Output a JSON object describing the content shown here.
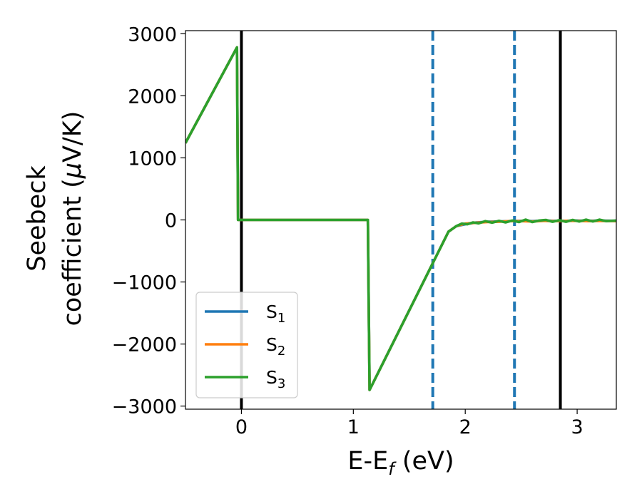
{
  "chart_data": {
    "type": "line",
    "xlabel": {
      "main": "E-E",
      "sub": "f",
      "suffix": " (eV)"
    },
    "ylabel": {
      "line1": "Seebeck",
      "line2_prefix": "coefficient  (",
      "line2_mu": "μ",
      "line2_suffix": "V/K)"
    },
    "xlim": [
      -0.5,
      3.35
    ],
    "ylim": [
      -3050,
      3050
    ],
    "xticks": [
      0,
      1,
      2,
      3
    ],
    "xtick_labels": [
      "0",
      "1",
      "2",
      "3"
    ],
    "yticks": [
      -3000,
      -2000,
      -1000,
      0,
      1000,
      2000,
      3000
    ],
    "ytick_labels": [
      "−3000",
      "−2000",
      "−1000",
      "0",
      "1000",
      "2000",
      "3000"
    ],
    "grid": false,
    "legend_position": "lower-left",
    "series": [
      {
        "name": "S",
        "subscript": "1",
        "color": "#1f77b4",
        "points": [
          [
            -0.5,
            1240
          ],
          [
            -0.04,
            2780
          ],
          [
            -0.03,
            0
          ],
          [
            1.13,
            0
          ],
          [
            1.145,
            -2740
          ],
          [
            1.85,
            -190
          ],
          [
            1.92,
            -100
          ],
          [
            2.0,
            -70
          ],
          [
            2.1,
            -40
          ],
          [
            2.2,
            -30
          ],
          [
            2.3,
            -25
          ],
          [
            2.4,
            -20
          ],
          [
            2.5,
            -15
          ],
          [
            2.6,
            -20
          ],
          [
            2.7,
            -10
          ],
          [
            2.8,
            -15
          ],
          [
            2.9,
            -15
          ],
          [
            3.0,
            -10
          ],
          [
            3.1,
            -15
          ],
          [
            3.2,
            -10
          ],
          [
            3.35,
            -15
          ]
        ]
      },
      {
        "name": "S",
        "subscript": "2",
        "color": "#ff7f0e",
        "points": [
          [
            -0.5,
            1240
          ],
          [
            -0.04,
            2780
          ],
          [
            -0.03,
            0
          ],
          [
            1.13,
            0
          ],
          [
            1.145,
            -2740
          ],
          [
            1.85,
            -190
          ],
          [
            1.92,
            -100
          ],
          [
            2.0,
            -60
          ],
          [
            2.1,
            -45
          ],
          [
            2.2,
            -35
          ],
          [
            2.3,
            -30
          ],
          [
            2.4,
            -20
          ],
          [
            2.5,
            -20
          ],
          [
            2.6,
            -25
          ],
          [
            2.7,
            -15
          ],
          [
            2.8,
            -20
          ],
          [
            2.9,
            -15
          ],
          [
            3.0,
            -15
          ],
          [
            3.1,
            -20
          ],
          [
            3.2,
            -15
          ],
          [
            3.35,
            -20
          ]
        ]
      },
      {
        "name": "S",
        "subscript": "3",
        "color": "#2ca02c",
        "points": [
          [
            -0.5,
            1240
          ],
          [
            -0.04,
            2780
          ],
          [
            -0.03,
            0
          ],
          [
            1.13,
            0
          ],
          [
            1.145,
            -2740
          ],
          [
            1.85,
            -190
          ],
          [
            1.92,
            -100
          ],
          [
            1.97,
            -60
          ],
          [
            2.02,
            -70
          ],
          [
            2.07,
            -40
          ],
          [
            2.12,
            -55
          ],
          [
            2.18,
            -20
          ],
          [
            2.24,
            -45
          ],
          [
            2.3,
            -15
          ],
          [
            2.36,
            -40
          ],
          [
            2.42,
            -10
          ],
          [
            2.48,
            -35
          ],
          [
            2.54,
            5
          ],
          [
            2.6,
            -35
          ],
          [
            2.66,
            -10
          ],
          [
            2.72,
            0
          ],
          [
            2.78,
            -30
          ],
          [
            2.84,
            -5
          ],
          [
            2.9,
            -30
          ],
          [
            2.96,
            0
          ],
          [
            3.02,
            -25
          ],
          [
            3.08,
            5
          ],
          [
            3.14,
            -25
          ],
          [
            3.2,
            5
          ],
          [
            3.26,
            -20
          ],
          [
            3.35,
            -10
          ]
        ]
      }
    ],
    "vlines": [
      {
        "x": 0.0,
        "color": "#000000",
        "style": "solid"
      },
      {
        "x": 2.85,
        "color": "#000000",
        "style": "solid"
      },
      {
        "x": 1.71,
        "color": "#1f77b4",
        "style": "dashed"
      },
      {
        "x": 2.44,
        "color": "#1f77b4",
        "style": "dashed"
      }
    ]
  }
}
